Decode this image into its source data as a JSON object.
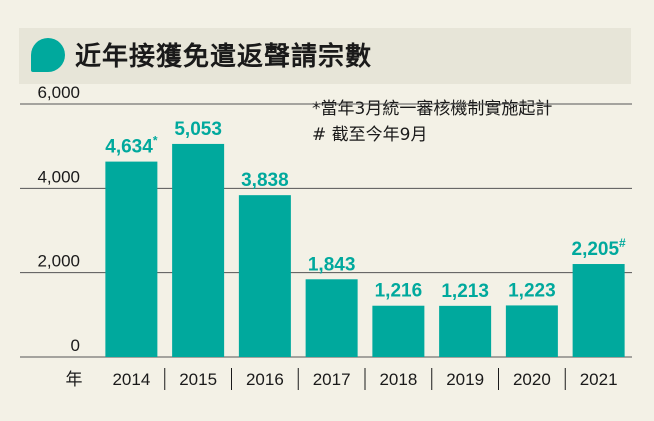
{
  "title": "近年接獲免遣返聲請宗數",
  "notes": [
    "*當年3月統一審核機制實施起計",
    "# 截至今年9月"
  ],
  "chart_data": {
    "type": "bar",
    "title": "近年接獲免遣返聲請宗數",
    "xlabel": "年",
    "ylabel": "",
    "categories": [
      "2014",
      "2015",
      "2016",
      "2017",
      "2018",
      "2019",
      "2020",
      "2021"
    ],
    "values": [
      4634,
      5053,
      3838,
      1843,
      1216,
      1213,
      1223,
      2205
    ],
    "labels": [
      "4,634*",
      "5,053",
      "3,838",
      "1,843",
      "1,216",
      "1,213",
      "1,223",
      "2,205#"
    ],
    "ylim": [
      0,
      6000
    ],
    "yticks": [
      0,
      2000,
      4000,
      6000
    ],
    "ytick_labels": [
      "0",
      "2,000",
      "4,000",
      "6,000"
    ],
    "grid": true,
    "colors": {
      "bar": "#00a99d",
      "label": "#00a99d",
      "grid": "#555555",
      "text": "#1a1a1a"
    }
  }
}
